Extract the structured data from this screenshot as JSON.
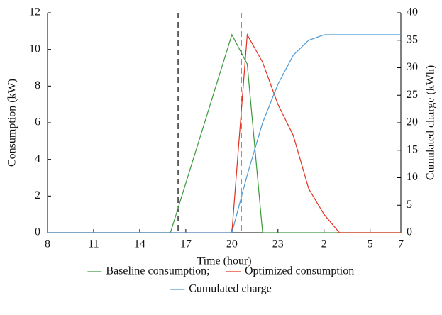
{
  "chart_data": {
    "type": "line",
    "x_label": "Time (hour)",
    "y_label": "Consumption (kW)",
    "y2_label": "Cumulated charge (kWh)",
    "x": [
      8,
      16,
      20,
      21,
      22,
      23,
      24,
      25,
      26,
      27,
      31
    ],
    "xlim": [
      8,
      31
    ],
    "xticks": [
      8,
      11,
      14,
      17,
      20,
      23,
      {
        "value": 26,
        "label": "2"
      },
      {
        "value": 29,
        "label": "5"
      },
      {
        "value": 31,
        "label": "7"
      }
    ],
    "ylim": [
      0,
      12
    ],
    "yticks": [
      0,
      2,
      4,
      6,
      8,
      10,
      12
    ],
    "y2lim": [
      0,
      40
    ],
    "y2ticks": [
      0,
      5,
      10,
      15,
      20,
      25,
      30,
      35,
      40
    ],
    "vlines": [
      16.5,
      20.6
    ],
    "series": [
      {
        "name": "Baseline consumption;",
        "color": "#3a9a3a",
        "values": [
          0,
          0,
          10.8,
          9.2,
          0,
          0,
          0,
          0,
          0,
          0,
          0
        ]
      },
      {
        "name": "Optimized consumption",
        "color": "#e0301e",
        "values": [
          0,
          0,
          0,
          10.8,
          9.3,
          7.0,
          5.3,
          2.4,
          1.0,
          0,
          0
        ]
      },
      {
        "name": "Cumulated charge",
        "color": "#4a9ad8",
        "axis": "y2",
        "values": [
          0,
          0,
          0,
          10.5,
          20,
          27,
          32.3,
          35,
          36,
          36,
          36
        ]
      }
    ]
  }
}
